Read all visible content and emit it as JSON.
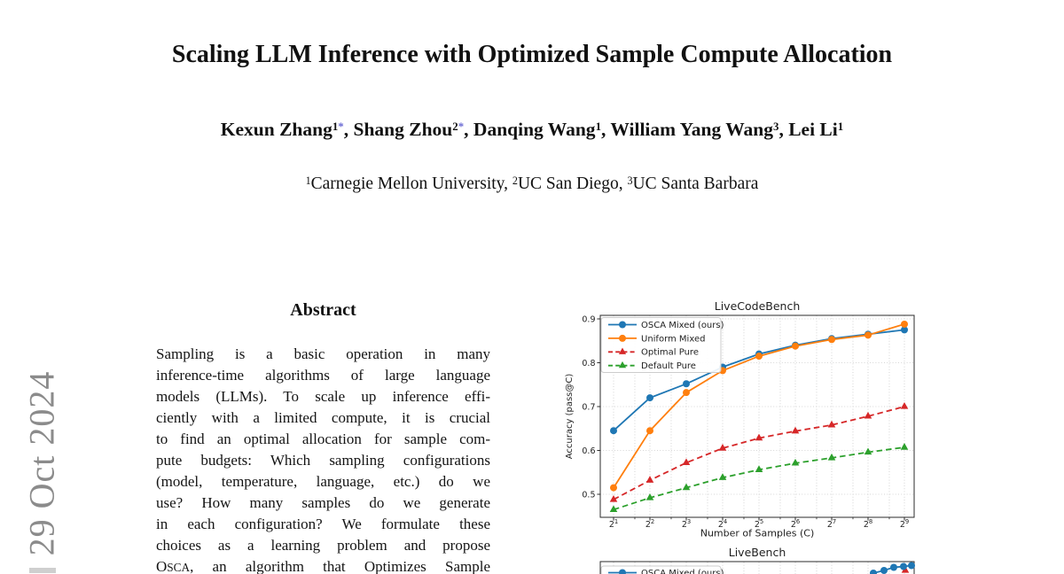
{
  "watermark": {
    "text": "29 Oct 2024",
    "color": "#8b8b8b",
    "fragment_visible": true
  },
  "header": {
    "title": "Scaling LLM Inference with Optimized Sample Compute Allocation",
    "authors": [
      {
        "name": "Kexun Zhang",
        "sup": "1",
        "star": true
      },
      {
        "name": "Shang Zhou",
        "sup": "2",
        "star": true
      },
      {
        "name": "Danqing Wang",
        "sup": "1",
        "star": false
      },
      {
        "name": "William Yang Wang",
        "sup": "3",
        "star": false
      },
      {
        "name": "Lei Li",
        "sup": "1",
        "star": false
      }
    ],
    "star_color": "#6a6ad4",
    "affiliations": [
      {
        "sup": "1",
        "name": "Carnegie Mellon University"
      },
      {
        "sup": "2",
        "name": "UC San Diego"
      },
      {
        "sup": "3",
        "name": "UC Santa Barbara"
      }
    ]
  },
  "abstract": {
    "heading": "Abstract",
    "lines": [
      "Sampling is a basic operation in many",
      "inference-time algorithms of large language",
      "models (LLMs). To scale up inference effi-",
      "ciently with a limited compute, it is crucial",
      "to find an optimal allocation for sample com-",
      "pute budgets: Which sampling configurations",
      "(model, temperature, language, etc.) do we",
      "use? How many samples do we generate",
      "in each configuration? We formulate these",
      "choices as a learning problem and propose",
      "OSCA, an algorithm that Optimizes Sample"
    ]
  },
  "chart_data": [
    {
      "id": "livecodebench",
      "type": "line",
      "title": "LiveCodeBench",
      "xlabel": "Number of Samples (C)",
      "ylabel": "Accuracy (pass@C)",
      "x_scale": "log2",
      "x_exponents": [
        1,
        2,
        3,
        4,
        5,
        6,
        7,
        8,
        9
      ],
      "x_tick_labels": [
        "2¹",
        "2²",
        "2³",
        "2⁴",
        "2⁵",
        "2⁶",
        "2⁷",
        "2⁸",
        "2⁹"
      ],
      "y_ticks": [
        0.5,
        0.6,
        0.7,
        0.8,
        0.9
      ],
      "ylim": [
        0.447,
        0.908
      ],
      "grid": true,
      "legend_position": "upper left",
      "colors": {
        "blue": "#1f77b4",
        "orange": "#ff7f0e",
        "red": "#d62728",
        "green": "#2ca02c"
      },
      "series": [
        {
          "name": "OSCA Mixed (ours)",
          "color": "#1f77b4",
          "marker": "circle",
          "dash": "solid",
          "values": [
            0.645,
            0.72,
            0.752,
            0.79,
            0.82,
            0.84,
            0.855,
            0.865,
            0.875
          ]
        },
        {
          "name": "Uniform Mixed",
          "color": "#ff7f0e",
          "marker": "circle",
          "dash": "solid",
          "values": [
            0.515,
            0.645,
            0.732,
            0.782,
            0.815,
            0.838,
            0.853,
            0.863,
            0.888
          ]
        },
        {
          "name": "Optimal Pure",
          "color": "#d62728",
          "marker": "triangle",
          "dash": "dashed",
          "values": [
            0.488,
            0.532,
            0.572,
            0.605,
            0.628,
            0.644,
            0.658,
            0.678,
            0.7
          ]
        },
        {
          "name": "Default Pure",
          "color": "#2ca02c",
          "marker": "triangle",
          "dash": "dashed",
          "values": [
            0.465,
            0.492,
            0.515,
            0.538,
            0.556,
            0.571,
            0.583,
            0.596,
            0.607
          ]
        }
      ]
    },
    {
      "id": "livebench",
      "type": "line",
      "title": "LiveBench",
      "partially_visible": true,
      "legend_first_entry": "OSCA Mixed (ours)",
      "legend_first_color": "#1f77b4",
      "visible_blue_points": [
        [
          357,
          34
        ],
        [
          369,
          31
        ],
        [
          380,
          27.5
        ],
        [
          391,
          26.5
        ],
        [
          400,
          25.5
        ]
      ],
      "visible_red_point": [
        393,
        31
      ]
    }
  ]
}
